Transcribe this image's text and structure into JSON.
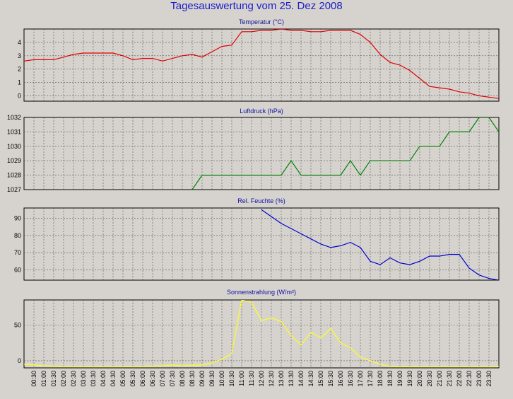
{
  "title": "Tagesauswertung vom 25. Dez 2008",
  "x_labels": [
    "00:30",
    "01:00",
    "01:30",
    "02:00",
    "02:30",
    "03:00",
    "03:30",
    "04:00",
    "04:30",
    "05:00",
    "05:30",
    "06:00",
    "06:30",
    "07:00",
    "07:30",
    "08:00",
    "08:30",
    "09:00",
    "09:30",
    "10:00",
    "10:30",
    "11:00",
    "11:30",
    "12:00",
    "12:30",
    "13:00",
    "13:30",
    "14:00",
    "14:30",
    "15:00",
    "15:30",
    "16:00",
    "16:30",
    "17:00",
    "17:30",
    "18:00",
    "18:30",
    "19:00",
    "19:30",
    "20:00",
    "20:30",
    "21:00",
    "21:30",
    "22:00",
    "22:30",
    "23:00",
    "23:30"
  ],
  "chart_data": [
    {
      "type": "line",
      "title": "Temperatur (°C)",
      "color": "#e00000",
      "ylim": [
        -0.4,
        5
      ],
      "yticks": [
        "0",
        "1",
        "2",
        "3",
        "4"
      ],
      "ytick_values": [
        0,
        1,
        2,
        3,
        4
      ],
      "x_range": [
        0,
        24
      ],
      "points": [
        [
          0,
          2.6
        ],
        [
          0.5,
          2.7
        ],
        [
          1,
          2.7
        ],
        [
          1.5,
          2.7
        ],
        [
          2,
          2.9
        ],
        [
          2.5,
          3.1
        ],
        [
          3,
          3.2
        ],
        [
          3.5,
          3.2
        ],
        [
          4,
          3.2
        ],
        [
          4.5,
          3.2
        ],
        [
          5,
          3.0
        ],
        [
          5.5,
          2.7
        ],
        [
          6,
          2.8
        ],
        [
          6.5,
          2.8
        ],
        [
          7,
          2.6
        ],
        [
          7.5,
          2.8
        ],
        [
          8,
          3.0
        ],
        [
          8.5,
          3.1
        ],
        [
          9,
          2.9
        ],
        [
          9.5,
          3.3
        ],
        [
          10,
          3.7
        ],
        [
          10.5,
          3.8
        ],
        [
          11,
          4.8
        ],
        [
          11.5,
          4.8
        ],
        [
          12,
          4.9
        ],
        [
          12.5,
          4.9
        ],
        [
          13,
          5.0
        ],
        [
          13.5,
          4.9
        ],
        [
          14,
          4.9
        ],
        [
          14.5,
          4.8
        ],
        [
          15,
          4.8
        ],
        [
          15.5,
          4.9
        ],
        [
          16,
          4.9
        ],
        [
          16.5,
          4.9
        ],
        [
          17,
          4.6
        ],
        [
          17.5,
          4.0
        ],
        [
          18,
          3.1
        ],
        [
          18.5,
          2.5
        ],
        [
          19,
          2.3
        ],
        [
          19.5,
          1.9
        ],
        [
          20,
          1.3
        ],
        [
          20.5,
          0.7
        ],
        [
          21,
          0.6
        ],
        [
          21.5,
          0.5
        ],
        [
          22,
          0.3
        ],
        [
          22.5,
          0.2
        ],
        [
          23,
          0.0
        ],
        [
          23.5,
          -0.1
        ],
        [
          24,
          -0.2
        ]
      ]
    },
    {
      "type": "line",
      "title": "Luftdruck (hPa)",
      "color": "#008000",
      "ylim": [
        1027,
        1032
      ],
      "yticks": [
        "1027",
        "1028",
        "1029",
        "1030",
        "1031",
        "1032"
      ],
      "ytick_values": [
        1027,
        1028,
        1029,
        1030,
        1031,
        1032
      ],
      "x_range": [
        0,
        24
      ],
      "points": [
        [
          8.5,
          1027
        ],
        [
          9,
          1028
        ],
        [
          9.5,
          1028
        ],
        [
          12,
          1028
        ],
        [
          13,
          1028
        ],
        [
          13.5,
          1029
        ],
        [
          14,
          1028
        ],
        [
          15,
          1028
        ],
        [
          16,
          1028
        ],
        [
          16.5,
          1029
        ],
        [
          17,
          1028
        ],
        [
          17.5,
          1029
        ],
        [
          18,
          1029
        ],
        [
          19.5,
          1029
        ],
        [
          20,
          1030
        ],
        [
          21,
          1030
        ],
        [
          21.5,
          1031
        ],
        [
          22.5,
          1031
        ],
        [
          23,
          1032
        ],
        [
          23.5,
          1032
        ],
        [
          24,
          1031
        ]
      ]
    },
    {
      "type": "line",
      "title": "Rel. Feuchte (%)",
      "color": "#0000d0",
      "ylim": [
        54,
        96
      ],
      "yticks": [
        "60",
        "70",
        "80",
        "90"
      ],
      "ytick_values": [
        60,
        70,
        80,
        90
      ],
      "x_range": [
        0,
        24
      ],
      "points": [
        [
          12,
          95
        ],
        [
          12.5,
          91
        ],
        [
          13,
          87
        ],
        [
          13.5,
          84
        ],
        [
          14,
          81
        ],
        [
          14.5,
          78
        ],
        [
          15,
          75
        ],
        [
          15.5,
          73
        ],
        [
          16,
          74
        ],
        [
          16.5,
          76
        ],
        [
          17,
          73
        ],
        [
          17.5,
          65
        ],
        [
          18,
          63
        ],
        [
          18.5,
          67
        ],
        [
          19,
          64
        ],
        [
          19.5,
          63
        ],
        [
          20,
          65
        ],
        [
          20.5,
          68
        ],
        [
          21,
          68
        ],
        [
          21.5,
          69
        ],
        [
          22,
          69
        ],
        [
          22.5,
          61
        ],
        [
          23,
          57
        ],
        [
          23.5,
          55
        ],
        [
          24,
          54
        ]
      ]
    },
    {
      "type": "line",
      "title": "Sonnenstrahlung (W/m²)",
      "color": "#ffff20",
      "ylim": [
        -10,
        85
      ],
      "yticks": [
        "0",
        "50"
      ],
      "ytick_values": [
        0,
        50
      ],
      "x_range": [
        0,
        24
      ],
      "points": [
        [
          0,
          -5
        ],
        [
          1,
          -7
        ],
        [
          2,
          -8
        ],
        [
          4,
          -8
        ],
        [
          6,
          -8
        ],
        [
          7,
          -7
        ],
        [
          7.5,
          -6
        ],
        [
          8,
          -7
        ],
        [
          9,
          -6
        ],
        [
          9.5,
          -3
        ],
        [
          10,
          2
        ],
        [
          10.5,
          10
        ],
        [
          11,
          85
        ],
        [
          11.5,
          82
        ],
        [
          12,
          56
        ],
        [
          12.5,
          60
        ],
        [
          13,
          55
        ],
        [
          13.5,
          35
        ],
        [
          14,
          22
        ],
        [
          14.5,
          40
        ],
        [
          15,
          32
        ],
        [
          15.5,
          45
        ],
        [
          16,
          25
        ],
        [
          16.5,
          18
        ],
        [
          17,
          5
        ],
        [
          17.5,
          0
        ],
        [
          18,
          -5
        ],
        [
          18.5,
          -8
        ],
        [
          19,
          -8
        ],
        [
          20,
          -8
        ],
        [
          22,
          -8
        ],
        [
          23,
          -8
        ],
        [
          24,
          -8
        ]
      ]
    }
  ]
}
